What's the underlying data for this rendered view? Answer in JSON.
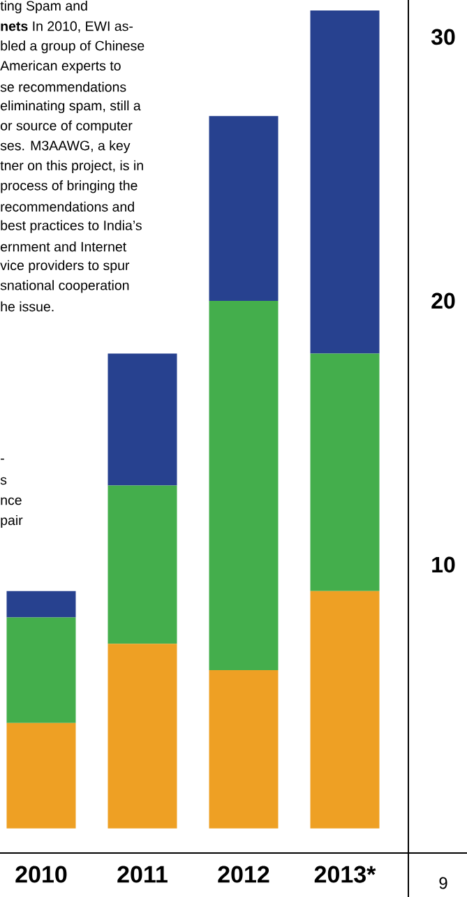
{
  "chart_data": {
    "type": "bar",
    "stacked": true,
    "categories": [
      "2010",
      "2011",
      "2012",
      "2013*"
    ],
    "series": [
      {
        "color": "#eea024",
        "values": [
          4,
          7,
          6,
          9
        ]
      },
      {
        "color": "#44ae4c",
        "values": [
          4,
          6,
          14,
          9
        ]
      },
      {
        "color": "#27418f",
        "values": [
          1,
          5,
          7,
          13
        ]
      }
    ],
    "ylim": [
      -0.93,
      31.4
    ],
    "yticks": [
      10,
      20,
      30
    ],
    "grid": false,
    "annotations": [
      "ting Spam and",
      "**nets** In 2010, EWI as-",
      "bled a group of Chinese",
      "American experts to",
      "se recommendations",
      "eliminating spam, still a",
      "or source of computer",
      "ses. M3AAWG, a key",
      "tner on this project, is in",
      "process of bringing the",
      "recommendations and",
      "best practices to India’s",
      "ernment and Internet",
      "vice providers to spur",
      "snational cooperation",
      "he issue.",
      "-",
      "s",
      "nce",
      "pair",
      "9"
    ]
  }
}
